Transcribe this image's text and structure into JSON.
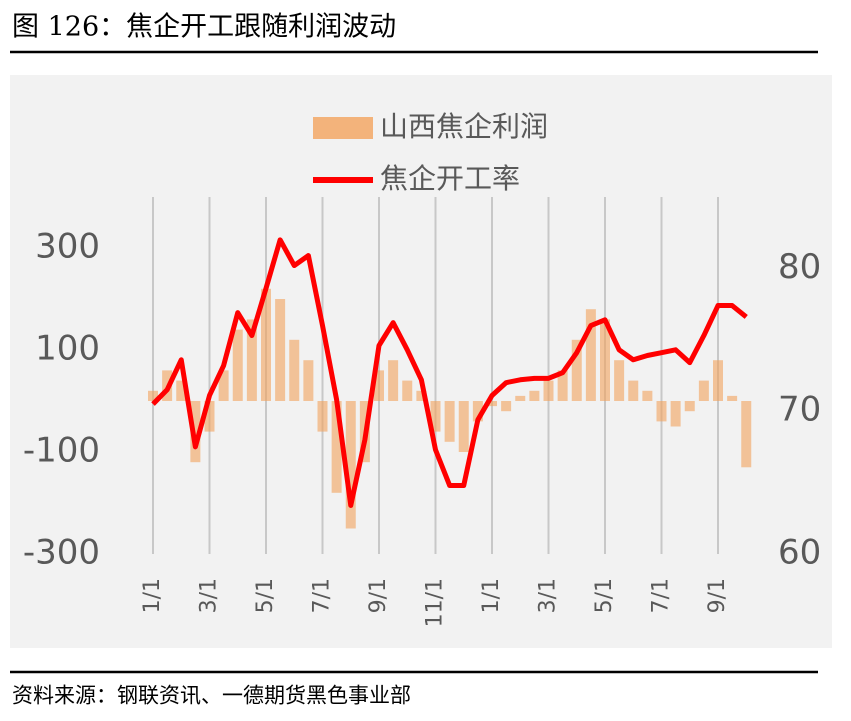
{
  "chart_data": {
    "type": "bar_line",
    "title": "图 126：焦企开工跟随利润波动",
    "source": "资料来源：钢联资讯、一德期货黑色事业部",
    "categories": [
      "1/1",
      null,
      null,
      null,
      "3/1",
      null,
      null,
      null,
      "5/1",
      null,
      null,
      null,
      "7/1",
      null,
      null,
      null,
      "9/1",
      null,
      null,
      null,
      "11/1",
      null,
      null,
      null,
      "1/1",
      null,
      null,
      null,
      "3/1",
      null,
      null,
      null,
      "5/1",
      null,
      null,
      null,
      "7/1",
      null,
      null,
      null,
      "9/1",
      null,
      null
    ],
    "series": [
      {
        "name": "山西焦企利润",
        "type": "bar",
        "axis": "y",
        "color": "#f2a25c",
        "values": [
          20,
          60,
          40,
          -120,
          -60,
          60,
          140,
          160,
          220,
          200,
          120,
          80,
          -60,
          -180,
          -250,
          -120,
          60,
          80,
          40,
          20,
          -60,
          -80,
          -100,
          -40,
          -10,
          -20,
          10,
          20,
          40,
          60,
          120,
          180,
          160,
          80,
          40,
          20,
          -40,
          -50,
          -20,
          40,
          80,
          10,
          -130
        ]
      },
      {
        "name": "焦企开工率",
        "type": "line",
        "axis": "y2",
        "color": "#ff0000",
        "values": [
          70.5,
          71.5,
          73.6,
          67.5,
          71.1,
          73.2,
          76.9,
          75.3,
          78.6,
          82,
          80.2,
          80.9,
          76,
          70.8,
          63.4,
          68,
          74.6,
          76.2,
          74.3,
          72.2,
          67.3,
          64.8,
          64.8,
          69.4,
          71.1,
          72,
          72.2,
          72.3,
          72.3,
          72.7,
          74.1,
          76,
          76.4,
          74.3,
          73.6,
          73.9,
          74.1,
          74.3,
          73.4,
          75.3,
          77.4,
          77.4,
          76.6
        ]
      }
    ],
    "ylim": [
      -300,
      400
    ],
    "yticks": [
      -300,
      -100,
      100,
      300
    ],
    "y2lim": [
      60,
      85
    ],
    "y2ticks": [
      60,
      70,
      80
    ],
    "grid": true
  }
}
